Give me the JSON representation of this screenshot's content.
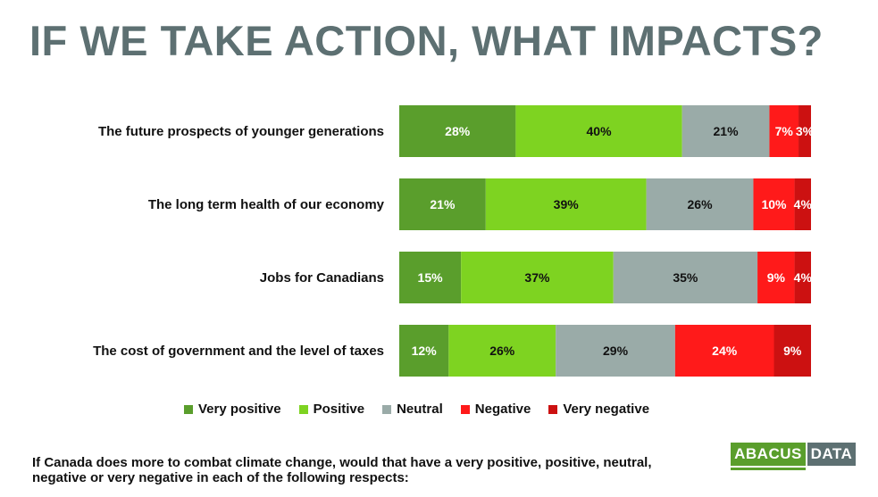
{
  "page": {
    "title": "IF WE TAKE ACTION, WHAT IMPACTS?",
    "question": "If Canada  does more to combat climate change, would that have a very positive, positive, neutral, negative or very negative in each of the following respects:",
    "logo": {
      "left": "ABACUS",
      "right": "DATA"
    }
  },
  "colors": {
    "very_positive": "#5a9e2c",
    "positive": "#7ed321",
    "neutral": "#9aaba8",
    "negative": "#ff1a1a",
    "very_negative": "#cc1111",
    "title": "#5d7072"
  },
  "chart_data": {
    "type": "bar",
    "orientation": "horizontal",
    "stacked": true,
    "categories": [
      "The future prospects of younger generations",
      "The long term health of our economy",
      "Jobs for Canadians",
      "The cost of government and the level of taxes"
    ],
    "series": [
      {
        "name": "Very positive",
        "color": "#5a9e2c",
        "label_color": "#ffffff",
        "values": [
          28,
          21,
          15,
          12
        ]
      },
      {
        "name": "Positive",
        "color": "#7ed321",
        "label_color": "#111111",
        "values": [
          40,
          39,
          37,
          26
        ]
      },
      {
        "name": "Neutral",
        "color": "#9aaba8",
        "label_color": "#111111",
        "values": [
          21,
          26,
          35,
          29
        ]
      },
      {
        "name": "Negative",
        "color": "#ff1a1a",
        "label_color": "#ffffff",
        "values": [
          7,
          10,
          9,
          24
        ]
      },
      {
        "name": "Very negative",
        "color": "#cc1111",
        "label_color": "#ffffff",
        "values": [
          3,
          4,
          4,
          9
        ]
      }
    ],
    "value_suffix": "%",
    "legend_position": "bottom",
    "grid": false
  }
}
